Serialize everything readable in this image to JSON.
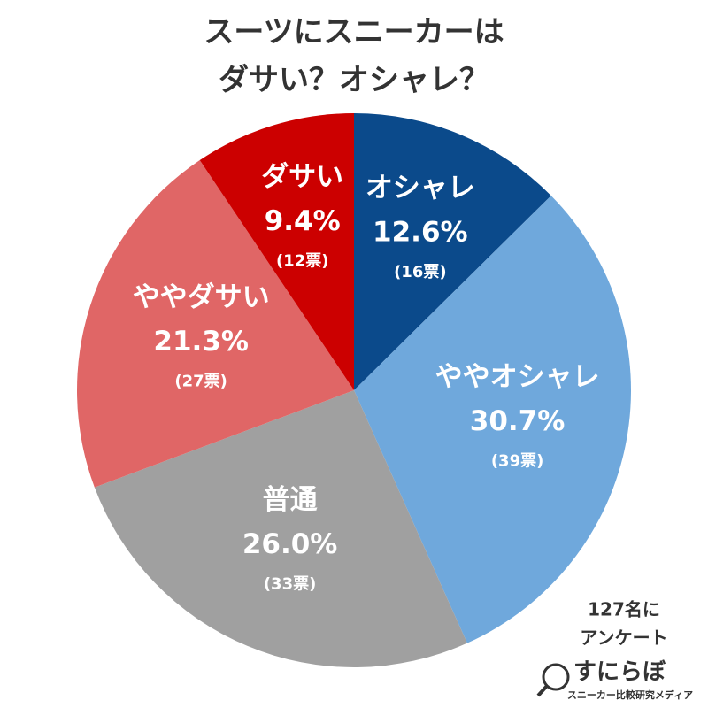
{
  "chart_data": {
    "type": "pie",
    "title": [
      "スーツにスニーカーは",
      "ダサい？オシャレ？"
    ],
    "categories": [
      "オシャレ",
      "ややオシャレ",
      "普通",
      "ややダサい",
      "ダサい"
    ],
    "values": [
      12.6,
      30.7,
      26.0,
      21.3,
      9.4
    ],
    "value_labels": [
      "12.6%",
      "30.7%",
      "26.0%",
      "21.3%",
      "9.4%"
    ],
    "count_labels": [
      "(16票)",
      "(39票)",
      "(33票)",
      "(27票)",
      "(12票)"
    ],
    "colors": [
      "#0b4a8b",
      "#6fa8dc",
      "#a0a0a0",
      "#e06666",
      "#cc0000"
    ],
    "annotation": [
      "127名に",
      "アンケート"
    ],
    "logo": {
      "name": "すにらぼ",
      "tagline": "スニーカー比較研究メディア"
    }
  }
}
